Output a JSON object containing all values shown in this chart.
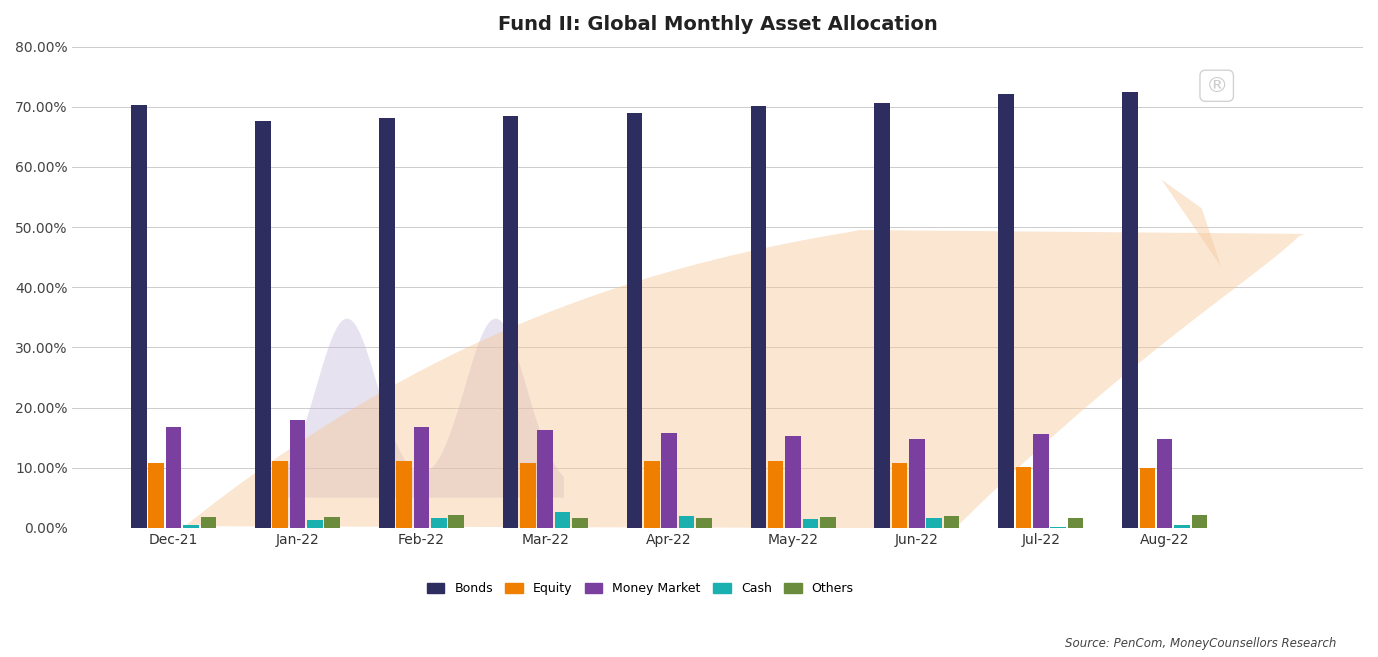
{
  "title": "Fund II: Global Monthly Asset Allocation",
  "categories": [
    "Dec-21",
    "Jan-22",
    "Feb-22",
    "Mar-22",
    "Apr-22",
    "May-22",
    "Jun-22",
    "Jul-22",
    "Aug-22"
  ],
  "series": {
    "Bonds": [
      70.3,
      67.7,
      68.2,
      68.4,
      69.0,
      70.1,
      70.7,
      72.1,
      72.5
    ],
    "Equity": [
      10.7,
      11.1,
      11.1,
      10.8,
      11.1,
      11.1,
      10.7,
      10.1,
      9.9
    ],
    "Money Market": [
      16.8,
      17.9,
      16.7,
      16.2,
      15.7,
      15.3,
      14.8,
      15.6,
      14.8
    ],
    "Cash": [
      0.4,
      1.3,
      1.7,
      2.6,
      2.0,
      1.5,
      1.6,
      0.2,
      0.5
    ],
    "Others": [
      1.8,
      1.8,
      2.1,
      1.7,
      1.7,
      1.8,
      1.9,
      1.7,
      2.1
    ]
  },
  "colors": {
    "Bonds": "#2e2d5f",
    "Equity": "#f07f00",
    "Money Market": "#7b3fa0",
    "Cash": "#1ab0b0",
    "Others": "#6a8c3c"
  },
  "ylim": [
    0,
    80
  ],
  "yticks": [
    0,
    10,
    20,
    30,
    40,
    50,
    60,
    70,
    80
  ],
  "source_text": "Source: PenCom, MoneyCounsellors Research",
  "background_color": "#ffffff",
  "bar_width": 0.14
}
